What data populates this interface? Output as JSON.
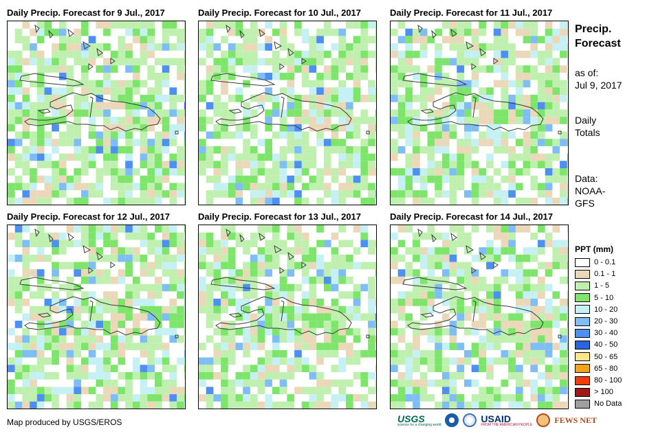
{
  "panels": [
    {
      "title": "Daily Precip. Forecast for 9 Jul., 2017",
      "seed": 11,
      "rain_bias": 0.55
    },
    {
      "title": "Daily Precip. Forecast for 10 Jul., 2017",
      "seed": 23,
      "rain_bias": 0.6
    },
    {
      "title": "Daily Precip. Forecast for 11 Jul., 2017",
      "seed": 37,
      "rain_bias": 0.45
    },
    {
      "title": "Daily Precip. Forecast for 12 Jul., 2017",
      "seed": 41,
      "rain_bias": 0.55
    },
    {
      "title": "Daily Precip. Forecast for 13 Jul., 2017",
      "seed": 53,
      "rain_bias": 0.6
    },
    {
      "title": "Daily Precip. Forecast for 14 Jul., 2017",
      "seed": 67,
      "rain_bias": 0.5
    }
  ],
  "side": {
    "title_line1": "Precip.",
    "title_line2": "Forecast",
    "asof_label": "as of:",
    "asof_date": "Jul 9, 2017",
    "totals_line1": "Daily",
    "totals_line2": "Totals",
    "data_line1": "Data:",
    "data_line2": "NOAA-",
    "data_line3": "GFS"
  },
  "legend": {
    "title": "PPT (mm)",
    "items": [
      {
        "label": "0 - 0.1",
        "color": "#ffffff"
      },
      {
        "label": "0.1 - 1",
        "color": "#ead8b9"
      },
      {
        "label": "1 - 5",
        "color": "#bff0b0"
      },
      {
        "label": "5 - 10",
        "color": "#7ee56b"
      },
      {
        "label": "10 - 20",
        "color": "#c6f1f4"
      },
      {
        "label": "20 - 30",
        "color": "#7fbdf5"
      },
      {
        "label": "30 - 40",
        "color": "#4e8ff2"
      },
      {
        "label": "40 - 50",
        "color": "#2a62e0"
      },
      {
        "label": "50 - 65",
        "color": "#fde58a"
      },
      {
        "label": "65 - 80",
        "color": "#f8a31c"
      },
      {
        "label": "80 - 100",
        "color": "#f73b08"
      },
      {
        "label": "> 100",
        "color": "#a01818"
      },
      {
        "label": "No Data",
        "color": "#a0a0a0"
      }
    ]
  },
  "credit": "Map produced by USGS/EROS",
  "logos": {
    "usgs": "USGS",
    "usgs_tagline": "science for a changing world",
    "usaid": "USAID",
    "usaid_tagline": "FROM THE AMERICAN PEOPLE",
    "fewsnet": "FEWS NET"
  }
}
